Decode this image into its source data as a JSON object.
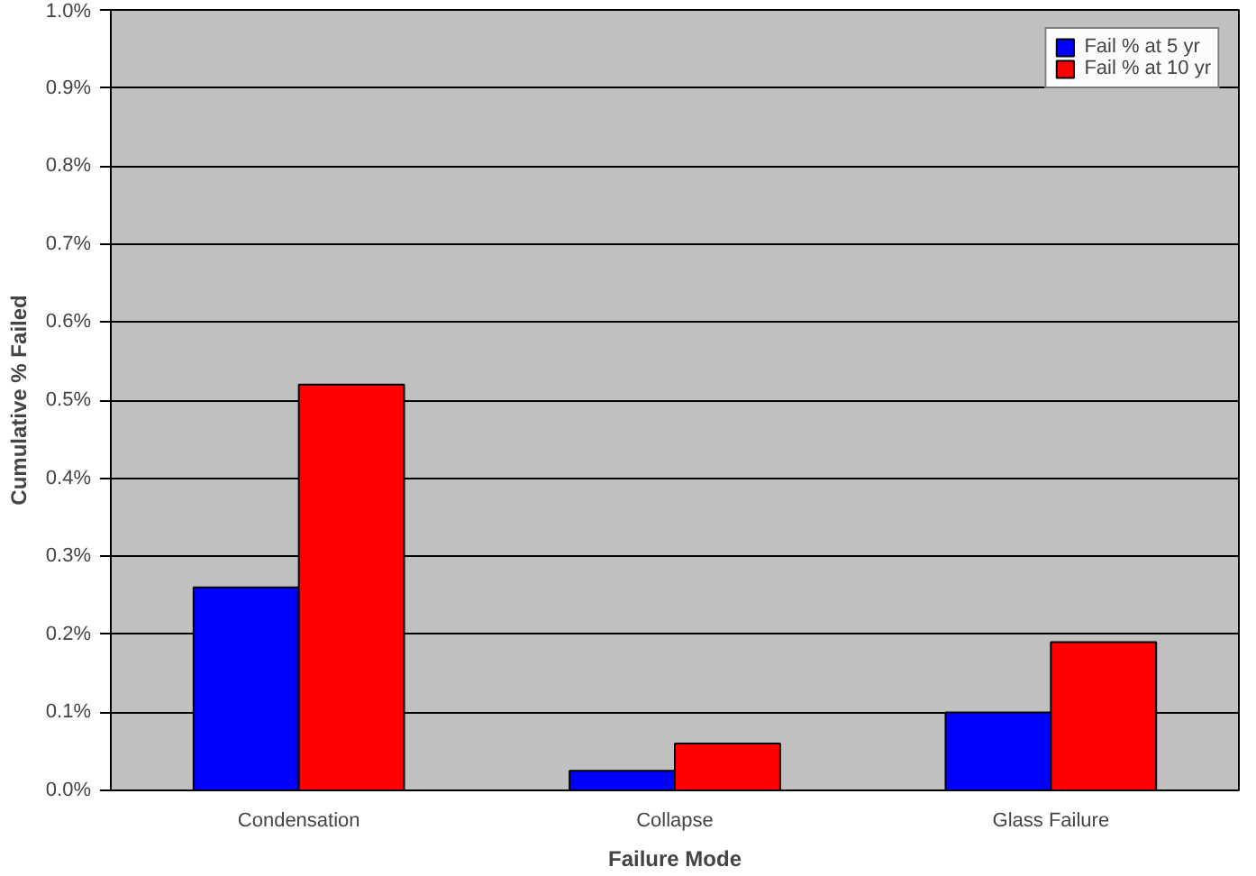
{
  "chart_data": {
    "type": "bar",
    "xlabel": "Failure Mode",
    "ylabel": "Cumulative % Failed",
    "categories": [
      "Condensation",
      "Collapse",
      "Glass Failure"
    ],
    "series": [
      {
        "name": "Fail % at 5 yr",
        "color": "#0000ff",
        "values": [
          0.26,
          0.025,
          0.1
        ]
      },
      {
        "name": "Fail % at 10 yr",
        "color": "#ff0000",
        "values": [
          0.52,
          0.06,
          0.19
        ]
      }
    ],
    "ylim": [
      0,
      1.0
    ],
    "yticks": [
      {
        "value": 0,
        "label": "0.0%"
      },
      {
        "value": 0.1,
        "label": "0.1%"
      },
      {
        "value": 0.2,
        "label": "0.2%"
      },
      {
        "value": 0.3,
        "label": "0.3%"
      },
      {
        "value": 0.4,
        "label": "0.4%"
      },
      {
        "value": 0.5,
        "label": "0.5%"
      },
      {
        "value": 0.6,
        "label": "0.6%"
      },
      {
        "value": 0.7,
        "label": "0.7%"
      },
      {
        "value": 0.8,
        "label": "0.8%"
      },
      {
        "value": 0.9,
        "label": "0.9%"
      },
      {
        "value": 1.0,
        "label": "1.0%"
      }
    ],
    "grid": "y",
    "legend": "top right"
  }
}
